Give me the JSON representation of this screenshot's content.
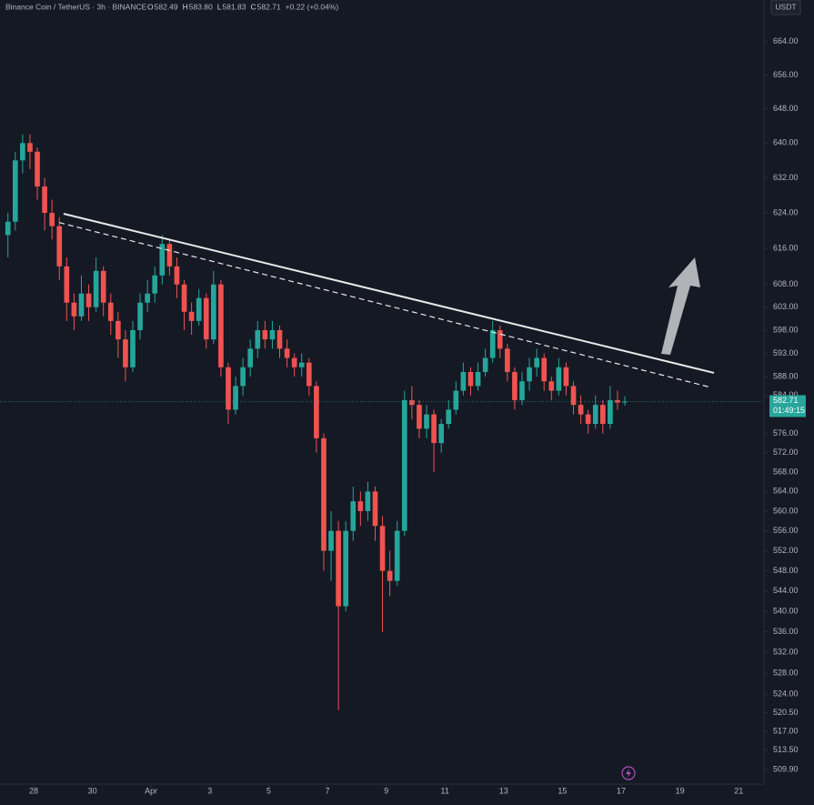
{
  "chart_data": {
    "type": "candlestick",
    "title": "Binance Coin / TetherUS · 3h · BINANCE",
    "ohlc_header": {
      "open_label": "O",
      "open": "582.49",
      "high_label": "H",
      "high": "583.80",
      "low_label": "L",
      "low": "581.83",
      "close_label": "C",
      "close": "582.71",
      "change": "+0.22 (+0.04%)"
    },
    "currency": "USDT",
    "last_price": 582.71,
    "countdown": "01:49:15",
    "up_color": "#26a69a",
    "down_color": "#ef5350",
    "log_scale": true,
    "xlim": [
      26.855,
      52.86
    ],
    "ylim": [
      507.2,
      674.1
    ],
    "xticks": [
      28,
      30,
      {
        "value": 32,
        "label": "Apr"
      },
      {
        "value": 34,
        "label": "3"
      },
      {
        "value": 36,
        "label": "5"
      },
      {
        "value": 38,
        "label": "7"
      },
      {
        "value": 40,
        "label": "9"
      },
      {
        "value": 42,
        "label": "11"
      },
      {
        "value": 44,
        "label": "13"
      },
      {
        "value": 46,
        "label": "15"
      },
      {
        "value": 48,
        "label": "17"
      },
      {
        "value": 50,
        "label": "19"
      },
      {
        "value": 52,
        "label": "21"
      }
    ],
    "yticks": [
      {
        "value": 664,
        "label": "664.00"
      },
      {
        "value": 656,
        "label": "656.00"
      },
      {
        "value": 648,
        "label": "648.00"
      },
      {
        "value": 640,
        "label": "640.00"
      },
      {
        "value": 632,
        "label": "632.00"
      },
      {
        "value": 624,
        "label": "624.00"
      },
      {
        "value": 616,
        "label": "616.00"
      },
      {
        "value": 608,
        "label": "608.00"
      },
      {
        "value": 603,
        "label": "603.00"
      },
      {
        "value": 598,
        "label": "598.00"
      },
      {
        "value": 593,
        "label": "593.00"
      },
      {
        "value": 588,
        "label": "588.00"
      },
      {
        "value": 584,
        "label": "584.00"
      },
      {
        "value": 576,
        "label": "576.00"
      },
      {
        "value": 572,
        "label": "572.00"
      },
      {
        "value": 568,
        "label": "568.00"
      },
      {
        "value": 564,
        "label": "564.00"
      },
      {
        "value": 560,
        "label": "560.00"
      },
      {
        "value": 556,
        "label": "556.00"
      },
      {
        "value": 552,
        "label": "552.00"
      },
      {
        "value": 548,
        "label": "548.00"
      },
      {
        "value": 544,
        "label": "544.00"
      },
      {
        "value": 540,
        "label": "540.00"
      },
      {
        "value": 536,
        "label": "536.00"
      },
      {
        "value": 532,
        "label": "532.00"
      },
      {
        "value": 528,
        "label": "528.00"
      },
      {
        "value": 524,
        "label": "524.00"
      },
      {
        "value": 520.5,
        "label": "520.50"
      },
      {
        "value": 517,
        "label": "517.00"
      },
      {
        "value": 513.5,
        "label": "513.50"
      },
      {
        "value": 509.9,
        "label": "509.90"
      }
    ],
    "x": [
      27.125,
      27.375,
      27.625,
      27.875,
      28.125,
      28.375,
      28.625,
      28.875,
      29.125,
      29.375,
      29.625,
      29.875,
      30.125,
      30.375,
      30.625,
      30.875,
      31.125,
      31.375,
      31.625,
      31.875,
      32.125,
      32.375,
      32.625,
      32.875,
      33.125,
      33.375,
      33.625,
      33.875,
      34.125,
      34.375,
      34.625,
      34.875,
      35.125,
      35.375,
      35.625,
      35.875,
      36.125,
      36.375,
      36.625,
      36.875,
      37.125,
      37.375,
      37.625,
      37.875,
      38.125,
      38.375,
      38.625,
      38.875,
      39.125,
      39.375,
      39.625,
      39.875,
      40.125,
      40.375,
      40.625,
      40.875,
      41.125,
      41.375,
      41.625,
      41.875,
      42.125,
      42.375,
      42.625,
      42.875,
      43.125,
      43.375,
      43.625,
      43.875,
      44.125,
      44.375,
      44.625,
      44.875,
      45.125,
      45.375,
      45.625,
      45.875,
      46.125,
      46.375,
      46.625,
      46.875,
      47.125,
      47.375,
      47.625,
      47.875,
      48.125
    ],
    "open": [
      619,
      622,
      636,
      640,
      638,
      630,
      624,
      621,
      612,
      604,
      601,
      606,
      603,
      611,
      604,
      600,
      596,
      590,
      598,
      604,
      606,
      610,
      617,
      612,
      608,
      602,
      600,
      605,
      596,
      608,
      590,
      581,
      586,
      590,
      594,
      598,
      596,
      598,
      594,
      592,
      590,
      591,
      586,
      575,
      552,
      556,
      541,
      556,
      562,
      560,
      564,
      557,
      548,
      546,
      556,
      583,
      582,
      577,
      580,
      574,
      578,
      581,
      585,
      589,
      586,
      589,
      592,
      598,
      594,
      589,
      583,
      587,
      590,
      592,
      587,
      585,
      590,
      586,
      582,
      580,
      578,
      582,
      578,
      583,
      582.5
    ],
    "high": [
      624,
      638,
      642,
      642,
      639,
      632,
      627,
      623,
      614,
      606,
      610,
      608,
      614,
      612,
      606,
      602,
      598,
      600,
      606,
      609,
      612,
      619,
      618,
      614,
      609,
      604,
      607,
      606,
      611,
      609,
      591,
      588,
      592,
      596,
      600,
      600,
      600,
      599,
      596,
      593,
      593,
      592,
      587,
      576,
      560,
      558,
      558,
      565,
      564,
      566,
      565,
      559,
      552,
      558,
      585,
      586,
      583,
      582,
      581,
      579,
      583,
      587,
      591,
      590,
      591,
      594,
      600,
      599,
      595,
      590,
      589,
      592,
      594,
      593,
      588,
      592,
      591,
      587,
      584,
      581,
      584,
      583,
      586,
      585,
      583.8
    ],
    "low": [
      614,
      620,
      633,
      634,
      627,
      620,
      618,
      609,
      600,
      598,
      600,
      600,
      602,
      601,
      597,
      592,
      587,
      589,
      596,
      602,
      604,
      608,
      610,
      605,
      598,
      597,
      599,
      594,
      595,
      588,
      578,
      580,
      584,
      588,
      592,
      594,
      594,
      592,
      590,
      588,
      588,
      584,
      572,
      548,
      546,
      521,
      540,
      554,
      557,
      558,
      554,
      536,
      543,
      545,
      555,
      579,
      575,
      575,
      568,
      572,
      577,
      580,
      584,
      584,
      585,
      588,
      591,
      592,
      587,
      581,
      582,
      585,
      588,
      585,
      583,
      584,
      584,
      580,
      578,
      576,
      577,
      576,
      577,
      581,
      581.83
    ],
    "close": [
      622,
      636,
      640,
      638,
      630,
      624,
      621,
      612,
      604,
      601,
      606,
      603,
      611,
      604,
      600,
      596,
      590,
      598,
      604,
      606,
      610,
      617,
      612,
      608,
      602,
      600,
      605,
      596,
      608,
      590,
      581,
      586,
      590,
      594,
      598,
      596,
      598,
      594,
      592,
      590,
      591,
      586,
      575,
      552,
      556,
      541,
      556,
      562,
      560,
      564,
      557,
      548,
      546,
      556,
      583,
      582,
      577,
      580,
      574,
      578,
      581,
      585,
      589,
      586,
      589,
      592,
      598,
      594,
      589,
      583,
      587,
      590,
      592,
      587,
      585,
      590,
      586,
      582,
      580,
      578,
      582,
      578,
      583,
      582.5,
      582.71
    ],
    "trendlines": [
      {
        "style": "solid",
        "x": [
          29.02,
          51.16
        ],
        "y": [
          623.8,
          588.8
        ]
      },
      {
        "style": "dashed",
        "x": [
          28.87,
          51.0
        ],
        "y": [
          621.8,
          585.8
        ]
      }
    ]
  }
}
